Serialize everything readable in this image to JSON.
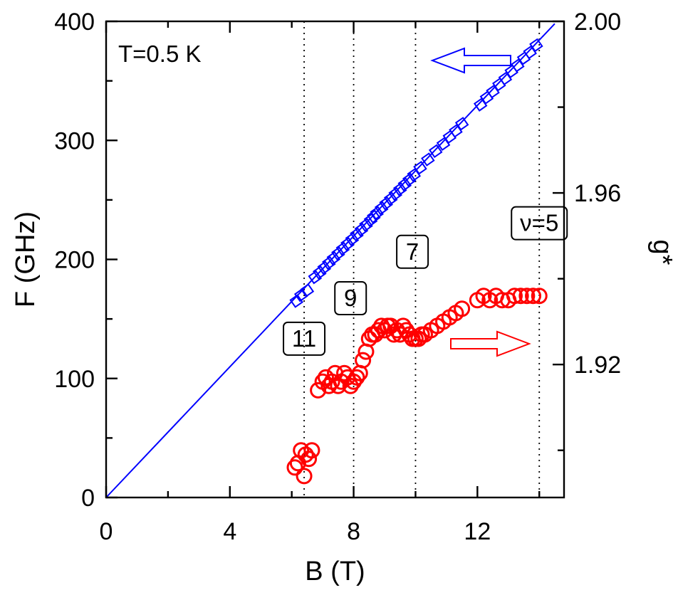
{
  "chart_data": {
    "type": "scatter",
    "title": "",
    "annotation": "T=0.5 K",
    "xlabel": "B (T)",
    "ylabel": "F (GHz)",
    "y2label": "g*",
    "xlim": [
      0,
      14.8
    ],
    "ylim": [
      0,
      400
    ],
    "y2lim": [
      1.889,
      2.0
    ],
    "xticks": [
      "0",
      "4",
      "8",
      "12"
    ],
    "yticks": [
      "0",
      "100",
      "200",
      "300",
      "400"
    ],
    "y2ticks": [
      "1.92",
      "1.96",
      "2.00"
    ],
    "grid": false,
    "dotted_vlines": [
      6.4,
      8.0,
      10.0,
      14.0
    ],
    "filling_factor_labels": [
      {
        "text": "11",
        "B": 6.4,
        "F": 134
      },
      {
        "text": "9",
        "B": 7.9,
        "F": 168
      },
      {
        "text": "7",
        "B": 9.9,
        "F": 207
      },
      {
        "text": "ν=5",
        "B": 14.0,
        "F": 231
      }
    ],
    "series": [
      {
        "axis": "left",
        "color": "#0000ff",
        "marker": "square",
        "fit_line": {
          "x": [
            0,
            14.5
          ],
          "y": [
            0,
            398
          ]
        },
        "x": [
          6.15,
          6.3,
          6.5,
          6.75,
          6.9,
          7.05,
          7.2,
          7.35,
          7.5,
          7.65,
          7.8,
          7.95,
          8.1,
          8.25,
          8.4,
          8.55,
          8.65,
          8.75,
          8.9,
          9.05,
          9.2,
          9.35,
          9.5,
          9.65,
          9.8,
          9.95,
          10.15,
          10.4,
          10.65,
          10.9,
          11.1,
          11.3,
          11.5,
          12.1,
          12.3,
          12.5,
          12.7,
          12.9,
          13.1,
          13.3,
          13.5,
          13.7,
          13.9
        ],
        "y": [
          165,
          170,
          174,
          185,
          189,
          193,
          197,
          201,
          205,
          209,
          213,
          217,
          221,
          225,
          229,
          233,
          236,
          239,
          243,
          247,
          251,
          255,
          259,
          263,
          267,
          271,
          277,
          284,
          291,
          297,
          303,
          308,
          314,
          330,
          336,
          341,
          347,
          352,
          358,
          363,
          369,
          374,
          380
        ]
      },
      {
        "axis": "right",
        "color": "#ff0000",
        "marker": "circle",
        "x": [
          6.1,
          6.2,
          6.3,
          6.4,
          6.45,
          6.55,
          6.65,
          6.85,
          7.0,
          7.1,
          7.2,
          7.3,
          7.4,
          7.5,
          7.6,
          7.7,
          7.8,
          7.9,
          8.0,
          8.1,
          8.2,
          8.3,
          8.4,
          8.5,
          8.6,
          8.7,
          8.8,
          8.9,
          9.0,
          9.1,
          9.2,
          9.3,
          9.4,
          9.5,
          9.6,
          9.7,
          9.8,
          9.9,
          10.0,
          10.1,
          10.2,
          10.3,
          10.5,
          10.7,
          10.9,
          11.1,
          11.3,
          11.5,
          12.0,
          12.2,
          12.4,
          12.6,
          12.8,
          13.0,
          13.2,
          13.4,
          13.6,
          13.8,
          14.0
        ],
        "y": [
          1.896,
          1.897,
          1.9,
          1.894,
          1.899,
          1.898,
          1.9,
          1.914,
          1.916,
          1.917,
          1.915,
          1.916,
          1.918,
          1.915,
          1.916,
          1.918,
          1.917,
          1.915,
          1.916,
          1.917,
          1.918,
          1.921,
          1.923,
          1.926,
          1.927,
          1.927,
          1.928,
          1.929,
          1.928,
          1.929,
          1.929,
          1.927,
          1.928,
          1.927,
          1.929,
          1.928,
          1.927,
          1.926,
          1.926,
          1.926,
          1.927,
          1.927,
          1.928,
          1.929,
          1.93,
          1.931,
          1.932,
          1.933,
          1.935,
          1.936,
          1.935,
          1.936,
          1.935,
          1.935,
          1.936,
          1.936,
          1.936,
          1.936,
          1.936
        ]
      }
    ],
    "left_arrow_color": "#0000ff",
    "right_arrow_color": "#ff0000"
  }
}
